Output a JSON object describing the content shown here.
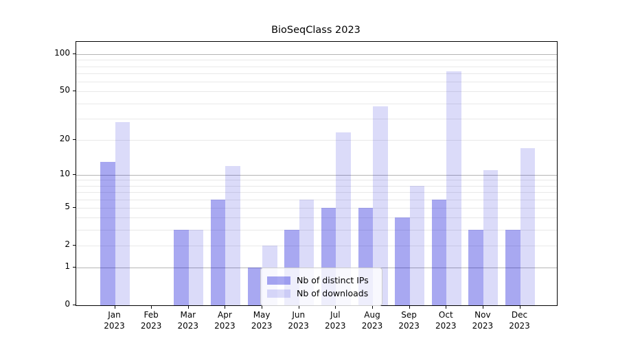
{
  "title": "BioSeqClass 2023",
  "chart_data": {
    "type": "bar",
    "title": "BioSeqClass 2023",
    "categories": [
      "Jan",
      "Feb",
      "Mar",
      "Apr",
      "May",
      "Jun",
      "Jul",
      "Aug",
      "Sep",
      "Oct",
      "Nov",
      "Dec"
    ],
    "year_label": "2023",
    "series": [
      {
        "name": "Nb of distinct IPs",
        "color_hex": "#a8a8f1",
        "color_rgba": "rgba(0,0,215,0.34)",
        "values": [
          13,
          0,
          3,
          6,
          1,
          3,
          5,
          5,
          4,
          6,
          3,
          3
        ]
      },
      {
        "name": "Nb of downloads",
        "color_hex": "#dbdbf9",
        "color_rgba": "rgba(0,0,215,0.14)",
        "values": [
          28,
          0,
          3,
          12,
          2,
          6,
          23,
          38,
          8,
          73,
          11,
          17
        ]
      }
    ],
    "xlabel": "",
    "ylabel": "",
    "yscale": "log1p",
    "ylim": [
      0,
      126
    ],
    "yticks": [
      0,
      1,
      2,
      5,
      10,
      20,
      50,
      100
    ],
    "major_gridlines": [
      1,
      10,
      100
    ],
    "minor_gridlines": [
      2,
      3,
      4,
      5,
      6,
      7,
      8,
      9,
      20,
      30,
      40,
      50,
      60,
      70,
      80,
      90
    ],
    "grid": "on",
    "legend_position": "inside lower center-right",
    "background_color": "#ffffff",
    "major_grid_color": "#b4b4b4",
    "minor_grid_color": "#e8e8e8"
  },
  "legend": {
    "item1": "Nb of distinct IPs",
    "item2": "Nb of downloads"
  }
}
